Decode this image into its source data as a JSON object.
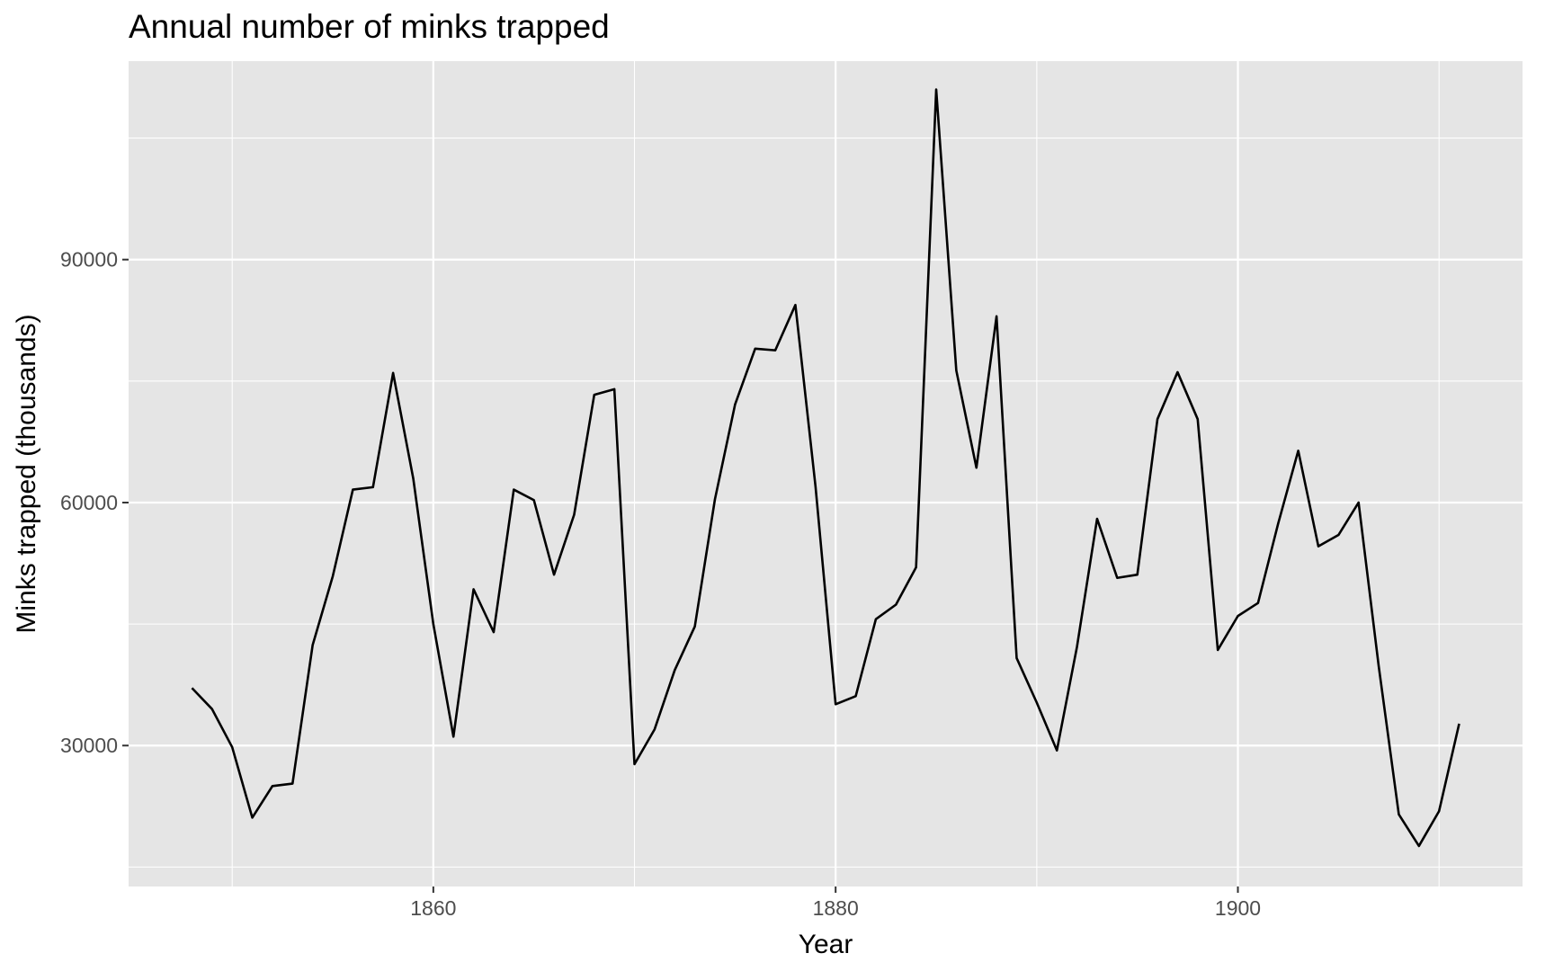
{
  "chart_data": {
    "type": "line",
    "title": "Annual number of minks trapped",
    "xlabel": "Year",
    "ylabel": "Minks trapped (thousands)",
    "xlim": [
      1844.85,
      1914.15
    ],
    "ylim": [
      12600,
      114500
    ],
    "x_major_ticks": [
      1860,
      1880,
      1900
    ],
    "x_minor_ticks": [
      1850,
      1870,
      1890,
      1910
    ],
    "y_major_ticks": [
      30000,
      60000,
      90000
    ],
    "y_minor_ticks": [
      15000,
      45000,
      75000,
      105000
    ],
    "x_tick_labels": [
      "1860",
      "1880",
      "1900"
    ],
    "y_tick_labels": [
      "30000",
      "60000",
      "90000"
    ],
    "grid": true,
    "legend": "none",
    "colors": {
      "panel": "#e5e5e5",
      "grid": "#ffffff",
      "line": "#000000",
      "tick": "#4d4d4d"
    },
    "series": [
      {
        "x": [
          1848,
          1849,
          1850,
          1851,
          1852,
          1853,
          1854,
          1855,
          1856,
          1857,
          1858,
          1859,
          1860,
          1861,
          1862,
          1863,
          1864,
          1865,
          1866,
          1867,
          1868,
          1869,
          1870,
          1871,
          1872,
          1873,
          1874,
          1875,
          1876,
          1877,
          1878,
          1879,
          1880,
          1881,
          1882,
          1883,
          1884,
          1885,
          1886,
          1887,
          1888,
          1889,
          1890,
          1891,
          1892,
          1893,
          1894,
          1895,
          1896,
          1897,
          1898,
          1899,
          1900,
          1901,
          1902,
          1903,
          1904,
          1905,
          1906,
          1907,
          1908,
          1909,
          1910,
          1911
        ],
        "values": [
          37100,
          34500,
          29800,
          21100,
          25000,
          25300,
          42400,
          50900,
          61600,
          61900,
          76000,
          63000,
          45000,
          31100,
          49300,
          44000,
          61600,
          60300,
          51100,
          58500,
          73300,
          74000,
          27700,
          32000,
          39300,
          44700,
          60400,
          72100,
          79000,
          78800,
          84400,
          62000,
          35100,
          36100,
          45600,
          47400,
          52000,
          111000,
          76300,
          64300,
          83000,
          40800,
          35300,
          29400,
          42200,
          58000,
          50700,
          51100,
          70300,
          76100,
          70300,
          41800,
          46000,
          47600,
          57400,
          66400,
          54600,
          56000,
          60000,
          39800,
          21500,
          17600,
          21900,
          32700
        ]
      }
    ]
  }
}
